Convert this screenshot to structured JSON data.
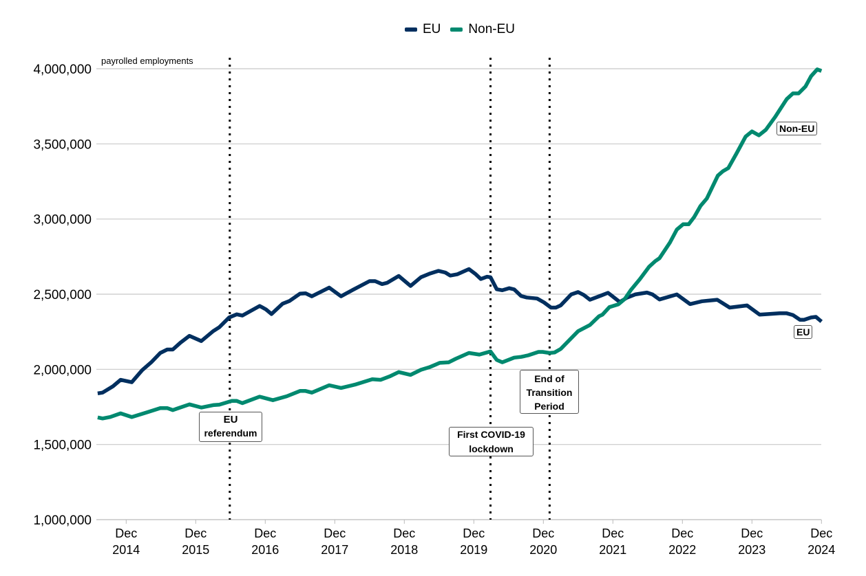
{
  "chart_data": {
    "type": "line",
    "title": "",
    "ylabel": "payrolled employments",
    "xlabel": "",
    "ylim": [
      1000000,
      4000000
    ],
    "xlim": [
      2014.5,
      2024.92
    ],
    "yticks": [
      1000000,
      1500000,
      2000000,
      2500000,
      3000000,
      3500000,
      4000000
    ],
    "ytick_labels": [
      "1,000,000",
      "1,500,000",
      "2,000,000",
      "2,500,000",
      "3,000,000",
      "3,500,000",
      "4,000,000"
    ],
    "xticks": [
      2014.92,
      2015.92,
      2016.92,
      2017.92,
      2018.92,
      2019.92,
      2020.92,
      2021.92,
      2022.92,
      2023.92,
      2024.92
    ],
    "xtick_labels": [
      [
        "Dec",
        "2014"
      ],
      [
        "Dec",
        "2015"
      ],
      [
        "Dec",
        "2016"
      ],
      [
        "Dec",
        "2017"
      ],
      [
        "Dec",
        "2018"
      ],
      [
        "Dec",
        "2019"
      ],
      [
        "Dec",
        "2020"
      ],
      [
        "Dec",
        "2021"
      ],
      [
        "Dec",
        "2022"
      ],
      [
        "Dec",
        "2023"
      ],
      [
        "Dec",
        "2024"
      ]
    ],
    "grid": true,
    "legend": {
      "placement": "top-center",
      "entries": [
        "EU",
        "Non-EU"
      ]
    },
    "series": [
      {
        "name": "EU",
        "color": "#002f5f",
        "end_label": "EU",
        "x": [
          2014.51,
          2014.58,
          2014.73,
          2014.84,
          2015.0,
          2015.15,
          2015.28,
          2015.41,
          2015.51,
          2015.59,
          2015.7,
          2015.83,
          2016.0,
          2016.17,
          2016.26,
          2016.4,
          2016.51,
          2016.59,
          2016.84,
          2016.93,
          2017.01,
          2017.17,
          2017.27,
          2017.42,
          2017.5,
          2017.59,
          2017.84,
          2018.01,
          2018.18,
          2018.42,
          2018.5,
          2018.6,
          2018.67,
          2018.84,
          2019.01,
          2019.16,
          2019.28,
          2019.41,
          2019.51,
          2019.58,
          2019.68,
          2019.85,
          2019.94,
          2020.02,
          2020.11,
          2020.16,
          2020.25,
          2020.33,
          2020.43,
          2020.5,
          2020.6,
          2020.68,
          2020.83,
          2020.93,
          2021.03,
          2021.1,
          2021.17,
          2021.32,
          2021.42,
          2021.5,
          2021.59,
          2021.75,
          2021.85,
          2022.02,
          2022.12,
          2022.24,
          2022.41,
          2022.49,
          2022.59,
          2022.84,
          2023.03,
          2023.2,
          2023.42,
          2023.6,
          2023.85,
          2024.03,
          2024.16,
          2024.32,
          2024.42,
          2024.51,
          2024.61,
          2024.67,
          2024.77,
          2024.84,
          2024.92
        ],
        "values": [
          1840000,
          1845000,
          1887000,
          1930000,
          1914000,
          1994000,
          2047000,
          2109000,
          2132000,
          2132000,
          2177000,
          2223000,
          2188000,
          2254000,
          2280000,
          2345000,
          2366000,
          2358000,
          2422000,
          2399000,
          2368000,
          2437000,
          2455000,
          2503000,
          2506000,
          2486000,
          2544000,
          2486000,
          2529000,
          2587000,
          2587000,
          2567000,
          2575000,
          2621000,
          2555000,
          2613000,
          2636000,
          2655000,
          2644000,
          2624000,
          2632000,
          2667000,
          2636000,
          2601000,
          2616000,
          2613000,
          2533000,
          2526000,
          2540000,
          2532000,
          2488000,
          2478000,
          2471000,
          2445000,
          2411000,
          2411000,
          2426000,
          2498000,
          2514000,
          2495000,
          2463000,
          2491000,
          2509000,
          2448000,
          2476000,
          2498000,
          2511000,
          2498000,
          2465000,
          2498000,
          2434000,
          2453000,
          2463000,
          2411000,
          2425000,
          2364000,
          2368000,
          2373000,
          2373000,
          2361000,
          2330000,
          2330000,
          2345000,
          2349000,
          2318000
        ]
      },
      {
        "name": "Non-EU",
        "color": "#00896f",
        "end_label": "Non-EU",
        "x": [
          2014.51,
          2014.58,
          2014.69,
          2014.84,
          2015.0,
          2015.22,
          2015.41,
          2015.51,
          2015.59,
          2015.83,
          2016.0,
          2016.17,
          2016.26,
          2016.44,
          2016.51,
          2016.59,
          2016.84,
          2017.03,
          2017.23,
          2017.42,
          2017.5,
          2017.59,
          2017.84,
          2018.01,
          2018.21,
          2018.46,
          2018.58,
          2018.71,
          2018.84,
          2019.01,
          2019.16,
          2019.28,
          2019.43,
          2019.56,
          2019.66,
          2019.85,
          2020.0,
          2020.16,
          2020.25,
          2020.33,
          2020.5,
          2020.6,
          2020.7,
          2020.85,
          2020.91,
          2021.01,
          2021.08,
          2021.17,
          2021.42,
          2021.59,
          2021.72,
          2021.77,
          2021.87,
          2022.0,
          2022.09,
          2022.18,
          2022.31,
          2022.44,
          2022.53,
          2022.59,
          2022.74,
          2022.84,
          2022.93,
          2023.01,
          2023.09,
          2023.18,
          2023.27,
          2023.43,
          2023.5,
          2023.58,
          2023.7,
          2023.83,
          2023.92,
          2024.02,
          2024.12,
          2024.26,
          2024.42,
          2024.51,
          2024.59,
          2024.69,
          2024.77,
          2024.86,
          2024.92
        ],
        "values": [
          1680000,
          1673000,
          1683000,
          1707000,
          1683000,
          1714000,
          1742000,
          1742000,
          1729000,
          1767000,
          1746000,
          1762000,
          1765000,
          1790000,
          1790000,
          1775000,
          1818000,
          1795000,
          1821000,
          1856000,
          1856000,
          1845000,
          1894000,
          1876000,
          1898000,
          1934000,
          1930000,
          1953000,
          1982000,
          1963000,
          1997000,
          2014000,
          2043000,
          2047000,
          2070000,
          2109000,
          2098000,
          2119000,
          2063000,
          2047000,
          2078000,
          2083000,
          2093000,
          2116000,
          2116000,
          2109000,
          2112000,
          2136000,
          2254000,
          2295000,
          2353000,
          2364000,
          2414000,
          2433000,
          2468000,
          2529000,
          2601000,
          2682000,
          2720000,
          2739000,
          2843000,
          2930000,
          2965000,
          2965000,
          3014000,
          3087000,
          3136000,
          3289000,
          3317000,
          3339000,
          3438000,
          3549000,
          3583000,
          3557000,
          3594000,
          3683000,
          3798000,
          3836000,
          3836000,
          3882000,
          3950000,
          3996000,
          3985000
        ]
      }
    ],
    "events": [
      {
        "date": 2016.41,
        "label": [
          "EU",
          "referendum"
        ]
      },
      {
        "date": 2020.16,
        "label": [
          "First COVID-19",
          "lockdown"
        ]
      },
      {
        "date": 2021.01,
        "label": [
          "End of",
          "Transition",
          "Period"
        ]
      }
    ]
  }
}
